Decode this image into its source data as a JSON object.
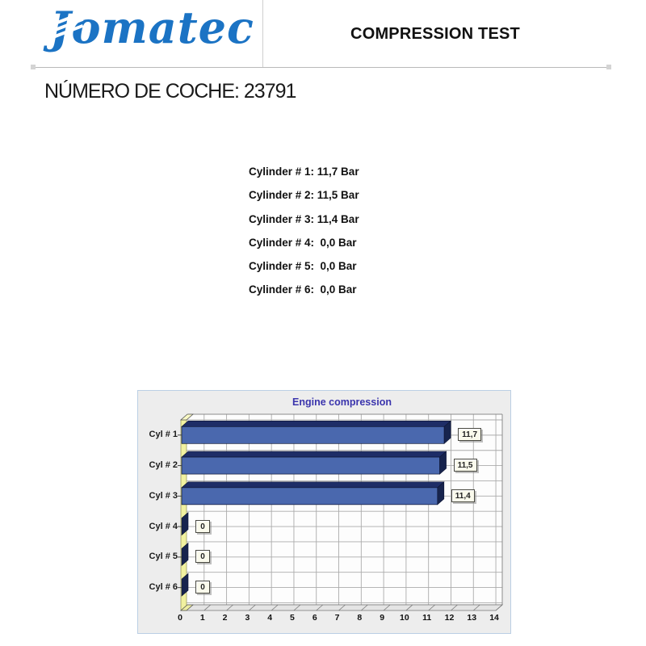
{
  "header": {
    "logo_text": "Jomatec",
    "logo_color": "#1B73C4",
    "report_title": "COMPRESSION TEST"
  },
  "car_number_line": "NÚMERO DE COCHE: 23791",
  "readings": [
    "Cylinder # 1: 11,7 Bar",
    "Cylinder # 2: 11,5 Bar",
    "Cylinder # 3: 11,4 Bar",
    "Cylinder # 4:  0,0 Bar",
    "Cylinder # 5:  0,0 Bar",
    "Cylinder # 6:  0,0 Bar"
  ],
  "chart_data": {
    "type": "bar",
    "orientation": "horizontal",
    "title": "Engine compression",
    "categories": [
      "Cyl # 1",
      "Cyl # 2",
      "Cyl # 3",
      "Cyl # 4",
      "Cyl # 5",
      "Cyl # 6"
    ],
    "values": [
      11.7,
      11.5,
      11.4,
      0,
      0,
      0
    ],
    "value_labels": [
      "11,7",
      "11,5",
      "11,4",
      "0",
      "0",
      "0"
    ],
    "unit": "Bar",
    "xlim": [
      0,
      14
    ],
    "x_ticks": [
      0,
      1,
      2,
      3,
      4,
      5,
      6,
      7,
      8,
      9,
      10,
      11,
      12,
      13,
      14
    ],
    "grid": true,
    "legend": "none",
    "style": "3d-horizontal-bars",
    "colors": {
      "bar_face": "#4A68AE",
      "bar_top": "#1E2D67",
      "bar_side": "#17244E",
      "bar_outline": "#0D1433",
      "axis_wall": "#F1F1A0",
      "axis_wall_outline": "#9A9A60",
      "panel_bg": "#EDEDED",
      "panel_border": "#BBCFE4",
      "plot_bg": "#FDFDFD",
      "gridline": "#ABABAB",
      "plot_edge": "#8A8A8A",
      "floor_fill": "#E4E4E4",
      "floor_outline": "#777777",
      "title_color": "#3B35AD",
      "label_box_bg": "#FAFAEC"
    }
  }
}
